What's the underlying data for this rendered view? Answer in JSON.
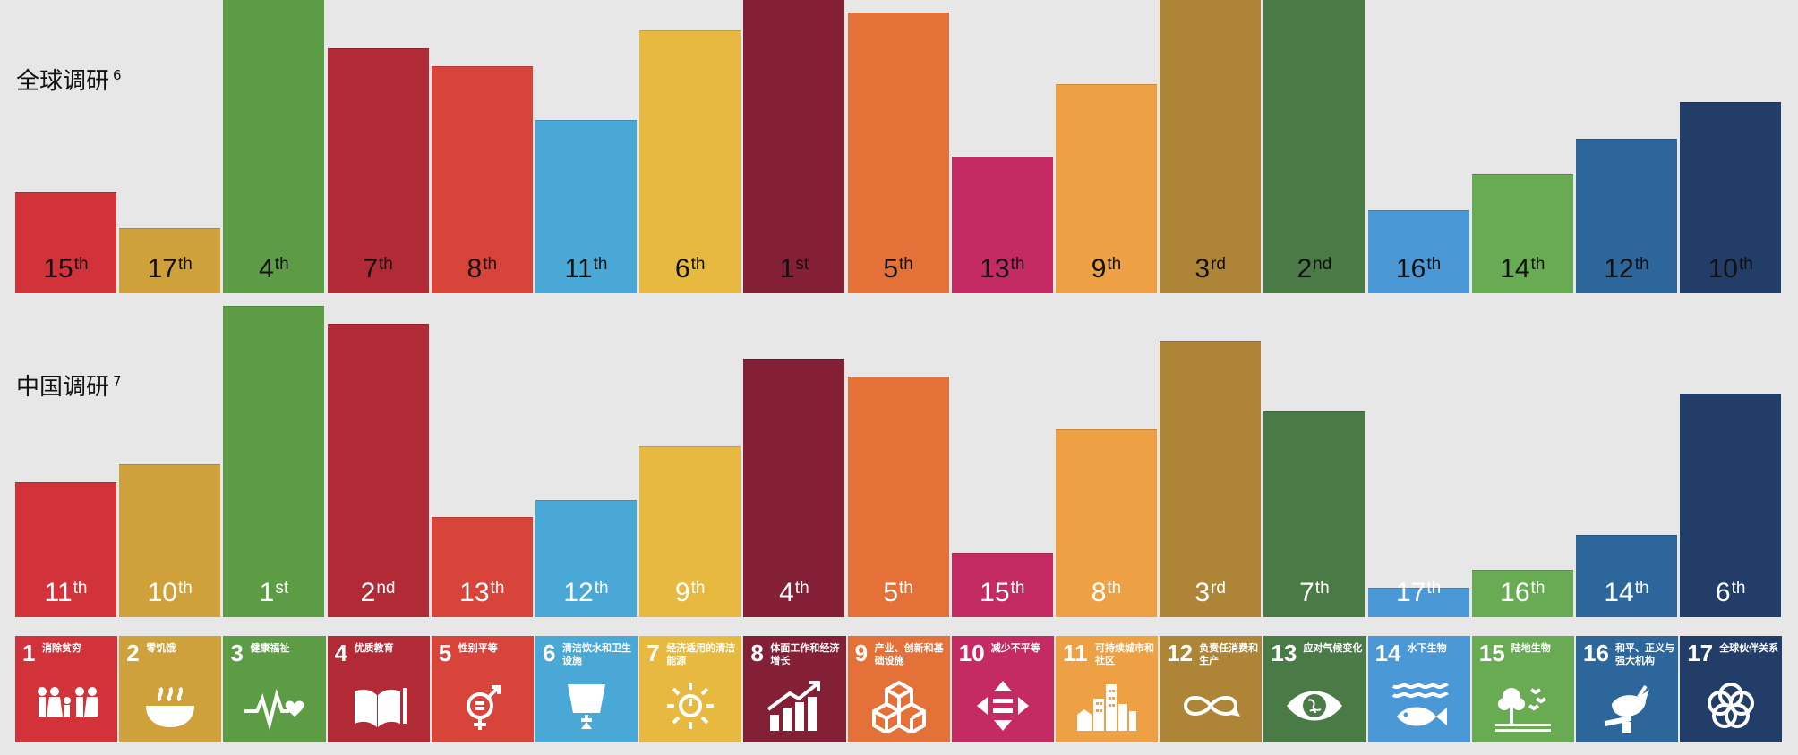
{
  "chart_data": [
    {
      "type": "bar",
      "title": "全球调研",
      "title_sup": "6",
      "categories": [
        "1",
        "2",
        "3",
        "4",
        "5",
        "6",
        "7",
        "8",
        "9",
        "10",
        "11",
        "12",
        "13",
        "14",
        "15",
        "16",
        "17"
      ],
      "values": [
        15,
        17,
        4,
        7,
        8,
        11,
        6,
        1,
        5,
        13,
        9,
        3,
        2,
        16,
        14,
        12,
        10
      ],
      "labels": [
        {
          "n": "15",
          "s": "th"
        },
        {
          "n": "17",
          "s": "th"
        },
        {
          "n": "4",
          "s": "th"
        },
        {
          "n": "7",
          "s": "th"
        },
        {
          "n": "8",
          "s": "th"
        },
        {
          "n": "11",
          "s": "th"
        },
        {
          "n": "6",
          "s": "th"
        },
        {
          "n": "1",
          "s": "st"
        },
        {
          "n": "5",
          "s": "th"
        },
        {
          "n": "13",
          "s": "th"
        },
        {
          "n": "9",
          "s": "th"
        },
        {
          "n": "3",
          "s": "rd"
        },
        {
          "n": "2",
          "s": "nd"
        },
        {
          "n": "16",
          "s": "th"
        },
        {
          "n": "14",
          "s": "th"
        },
        {
          "n": "12",
          "s": "th"
        },
        {
          "n": "10",
          "s": "th"
        }
      ],
      "label_color": "dark"
    },
    {
      "type": "bar",
      "title": "中国调研",
      "title_sup": "7",
      "categories": [
        "1",
        "2",
        "3",
        "4",
        "5",
        "6",
        "7",
        "8",
        "9",
        "10",
        "11",
        "12",
        "13",
        "14",
        "15",
        "16",
        "17"
      ],
      "values": [
        11,
        10,
        1,
        2,
        13,
        12,
        9,
        4,
        5,
        15,
        8,
        3,
        7,
        17,
        16,
        14,
        6
      ],
      "labels": [
        {
          "n": "11",
          "s": "th"
        },
        {
          "n": "10",
          "s": "th"
        },
        {
          "n": "1",
          "s": "st"
        },
        {
          "n": "2",
          "s": "nd"
        },
        {
          "n": "13",
          "s": "th"
        },
        {
          "n": "12",
          "s": "th"
        },
        {
          "n": "9",
          "s": "th"
        },
        {
          "n": "4",
          "s": "th"
        },
        {
          "n": "5",
          "s": "th"
        },
        {
          "n": "15",
          "s": "th"
        },
        {
          "n": "8",
          "s": "th"
        },
        {
          "n": "3",
          "s": "rd"
        },
        {
          "n": "7",
          "s": "th"
        },
        {
          "n": "17",
          "s": "th"
        },
        {
          "n": "16",
          "s": "th"
        },
        {
          "n": "14",
          "s": "th"
        },
        {
          "n": "6",
          "s": "th"
        }
      ],
      "label_color": "light"
    }
  ],
  "goals": [
    {
      "num": "1",
      "name": "消除贫穷",
      "color": "#d2333a",
      "icon": "people-icon"
    },
    {
      "num": "2",
      "name": "零饥饿",
      "color": "#cfa13b",
      "icon": "bowl-icon"
    },
    {
      "num": "3",
      "name": "健康福祉",
      "color": "#5b9c44",
      "icon": "heartbeat-icon"
    },
    {
      "num": "4",
      "name": "优质教育",
      "color": "#b22a36",
      "icon": "book-icon"
    },
    {
      "num": "5",
      "name": "性别平等",
      "color": "#d8433a",
      "icon": "gender-icon"
    },
    {
      "num": "6",
      "name": "清洁饮水和卫生设施",
      "color": "#4aa8d6",
      "icon": "water-drop-icon"
    },
    {
      "num": "7",
      "name": "经济适用的清洁能源",
      "color": "#e8b940",
      "icon": "sun-icon"
    },
    {
      "num": "8",
      "name": "体面工作和经济增长",
      "color": "#842036",
      "icon": "growth-chart-icon"
    },
    {
      "num": "9",
      "name": "产业、创新和基础设施",
      "color": "#e37138",
      "icon": "cubes-icon"
    },
    {
      "num": "10",
      "name": "减少不平等",
      "color": "#c42b62",
      "icon": "equality-arrows-icon"
    },
    {
      "num": "11",
      "name": "可持续城市和社区",
      "color": "#eda144",
      "icon": "city-icon"
    },
    {
      "num": "12",
      "name": "负责任消费和生产",
      "color": "#ae8536",
      "icon": "infinity-icon"
    },
    {
      "num": "13",
      "name": "应对气候变化",
      "color": "#4a7a45",
      "icon": "eye-globe-icon"
    },
    {
      "num": "14",
      "name": "水下生物",
      "color": "#4a98d6",
      "icon": "fish-icon"
    },
    {
      "num": "15",
      "name": "陆地生物",
      "color": "#68ab52",
      "icon": "tree-bird-icon"
    },
    {
      "num": "16",
      "name": "和平、正义与强大机构",
      "color": "#2c669a",
      "icon": "dove-gavel-icon"
    },
    {
      "num": "17",
      "name": "全球伙伴关系",
      "color": "#223d67",
      "icon": "partnership-rings-icon"
    }
  ]
}
